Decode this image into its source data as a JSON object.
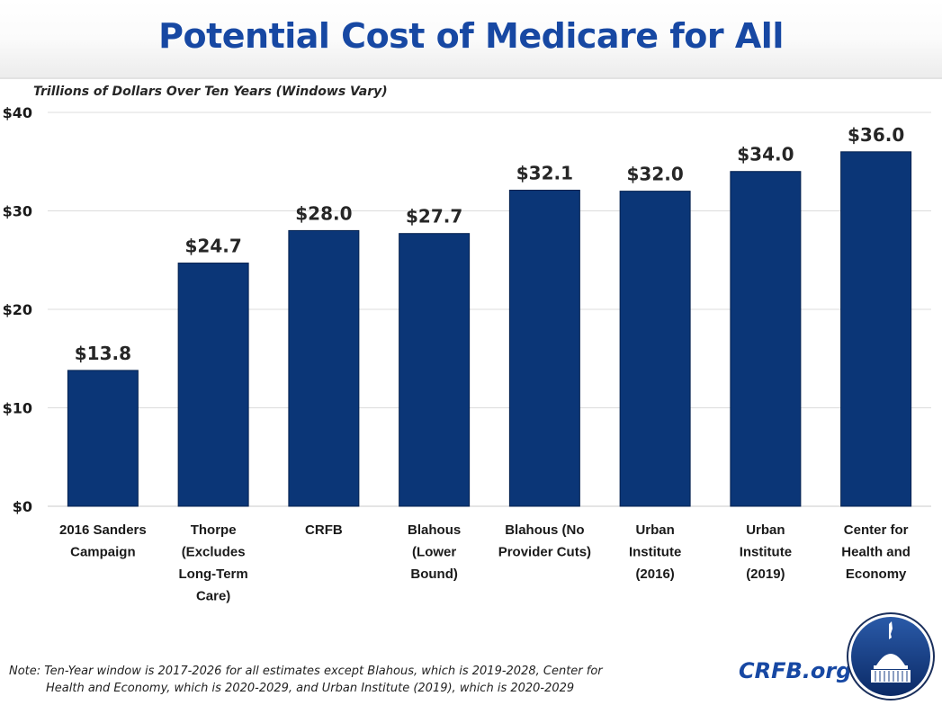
{
  "header": {
    "title": "Potential Cost of Medicare for All"
  },
  "chart_data": {
    "type": "bar",
    "title": "Potential Cost of Medicare for All",
    "ylabel": "Trillions of Dollars Over Ten Years (Windows Vary)",
    "categories": [
      [
        "2016 Sanders",
        "Campaign"
      ],
      [
        "Thorpe",
        "(Excludes",
        "Long-Term",
        "Care)"
      ],
      [
        "CRFB"
      ],
      [
        "Blahous",
        "(Lower",
        "Bound)"
      ],
      [
        "Blahous (No",
        "Provider Cuts)"
      ],
      [
        "Urban",
        "Institute",
        "(2016)"
      ],
      [
        "Urban",
        "Institute",
        "(2019)"
      ],
      [
        "Center for",
        "Health and",
        "Economy"
      ]
    ],
    "values": [
      13.8,
      24.7,
      28.0,
      27.7,
      32.1,
      32.0,
      34.0,
      36.0
    ],
    "data_labels": [
      "$13.8",
      "$24.7",
      "$28.0",
      "$27.7",
      "$32.1",
      "$32.0",
      "$34.0",
      "$36.0"
    ],
    "ylim": [
      0,
      40
    ],
    "yticks": [
      0,
      10,
      20,
      30,
      40
    ],
    "ytick_labels": [
      "$0",
      "$10",
      "$20",
      "$30",
      "$40"
    ],
    "grid": true,
    "bar_color": "#0b3677"
  },
  "footer": {
    "note_line1": "Note: Ten-Year window is 2017-2026 for all estimates except Blahous, which is 2019-2028, Center for",
    "note_line2": "Health and Economy, which is 2020-2029, and Urban Institute (2019), which is 2020-2029",
    "brand": "CRFB.org"
  }
}
